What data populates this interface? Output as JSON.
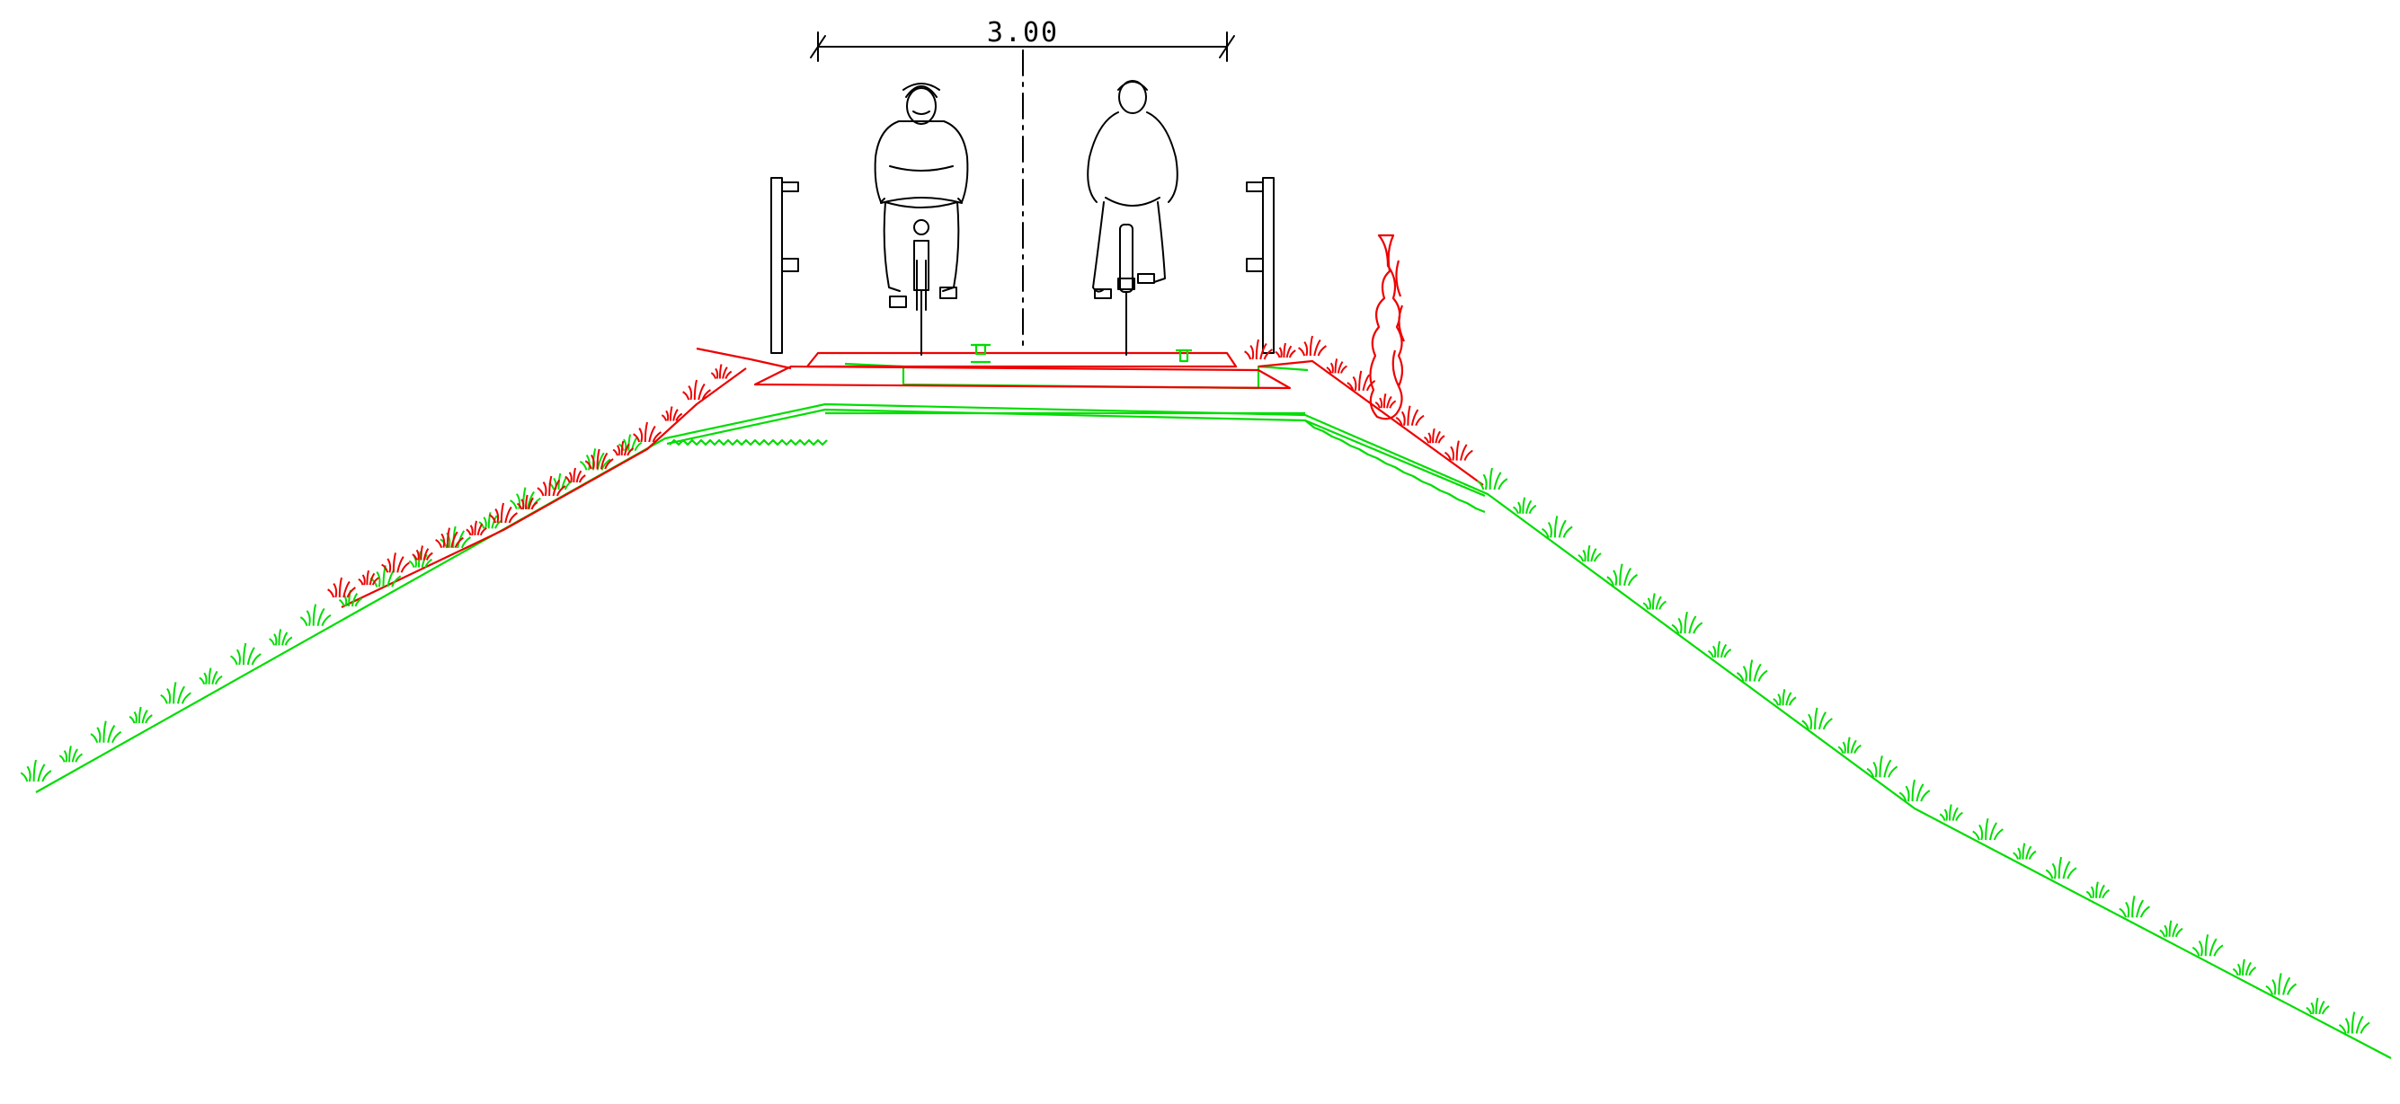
{
  "dimension": {
    "label": "3.00"
  },
  "colors": {
    "outline": "#000000",
    "existing_ground": "#00dd00",
    "new_works": "#ee0000",
    "background": "#ffffff"
  },
  "elements": [
    "cross-section-embankment",
    "cycle-path-pavement",
    "railing-posts",
    "cyclists",
    "centerline",
    "grass-vegetation",
    "cypress-tree"
  ]
}
